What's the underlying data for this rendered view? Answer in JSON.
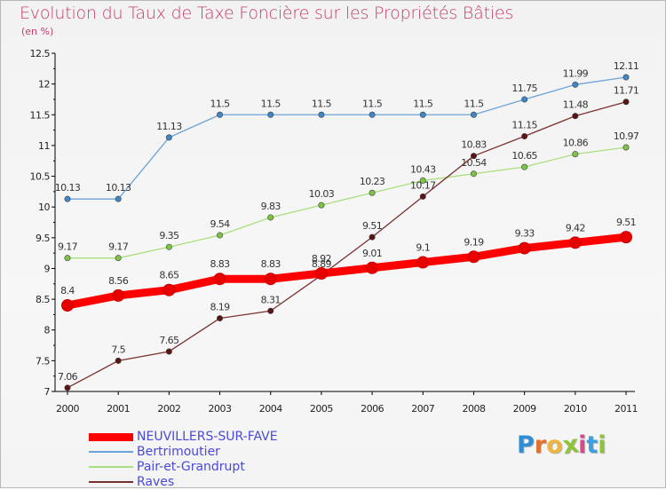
{
  "title": "Evolution du Taux de Taxe Foncière sur les Propriétés Bâties",
  "subtitle": "(en %)",
  "logo": {
    "letters": [
      "P",
      "r",
      "o",
      "x",
      "i",
      "t",
      "i"
    ],
    "colors": [
      "#2d8fd6",
      "#e0702a",
      "#f0b43c",
      "#8fc43a",
      "#d84a8a",
      "#3aa0e0",
      "#8fc43a"
    ]
  },
  "chart_data": {
    "type": "line",
    "x": [
      "2000",
      "2001",
      "2002",
      "2003",
      "2004",
      "2005",
      "2006",
      "2007",
      "2008",
      "2009",
      "2010",
      "2011"
    ],
    "ylim": [
      7,
      12.5
    ],
    "yticks": [
      "7",
      "7.5",
      "8",
      "8.5",
      "9",
      "9.5",
      "10",
      "10.5",
      "11",
      "11.5",
      "12",
      "12.5"
    ],
    "grid": false,
    "series": [
      {
        "name": "NEUVILLERS-SUR-FAVE",
        "values": [
          8.4,
          8.56,
          8.65,
          8.83,
          8.83,
          8.92,
          9.01,
          9.1,
          9.19,
          9.33,
          9.42,
          9.51
        ],
        "labels": [
          "8.4",
          "8.56",
          "8.65",
          "8.83",
          "8.83",
          "8.92",
          "9.01",
          "9.1",
          "9.19",
          "9.33",
          "9.42",
          "9.51"
        ],
        "color": "#ff0000",
        "marker": "#e60000",
        "thick": true
      },
      {
        "name": "Bertrimoutier",
        "values": [
          10.13,
          10.13,
          11.13,
          11.5,
          11.5,
          11.5,
          11.5,
          11.5,
          11.5,
          11.75,
          11.99,
          12.11
        ],
        "labels": [
          "10.13",
          "10.13",
          "11.13",
          "11.5",
          "11.5",
          "11.5",
          "11.5",
          "11.5",
          "11.5",
          "11.75",
          "11.99",
          "12.11"
        ],
        "color": "#6ea3d8",
        "marker": "#3d86c8",
        "thick": false
      },
      {
        "name": "Pair-et-Grandrupt",
        "values": [
          9.17,
          9.17,
          9.35,
          9.54,
          9.83,
          10.03,
          10.23,
          10.43,
          10.54,
          10.65,
          10.86,
          10.97
        ],
        "labels": [
          "9.17",
          "9.17",
          "9.35",
          "9.54",
          "9.83",
          "10.03",
          "10.23",
          "10.43",
          "10.54",
          "10.65",
          "10.86",
          "10.97"
        ],
        "color": "#a9df7c",
        "marker": "#7cc443",
        "thick": false
      },
      {
        "name": "Raves",
        "values": [
          7.06,
          7.5,
          7.65,
          8.19,
          8.31,
          8.89,
          9.51,
          10.17,
          10.83,
          11.15,
          11.48,
          11.71
        ],
        "labels": [
          "7.06",
          "7.5",
          "7.65",
          "8.19",
          "8.31",
          "8.89",
          "9.51",
          "10.17",
          "10.83",
          "11.15",
          "11.48",
          "11.71"
        ],
        "color": "#7b3030",
        "marker": "#5a1414",
        "thick": false
      }
    ]
  }
}
